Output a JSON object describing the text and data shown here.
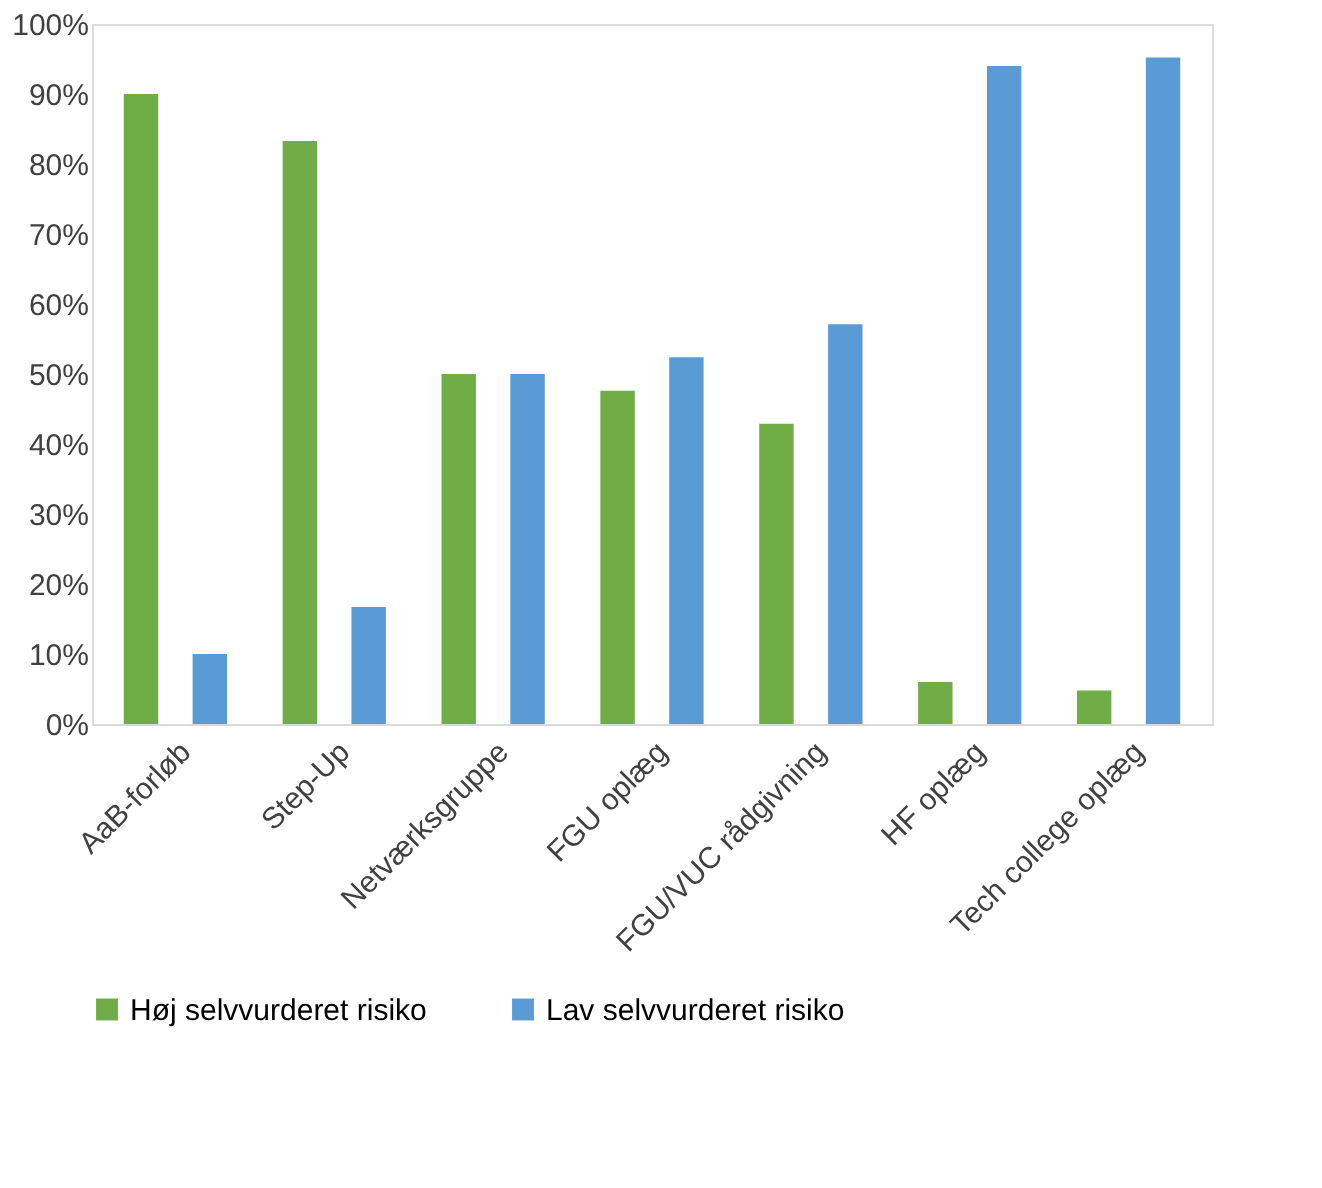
{
  "chart_data": {
    "type": "bar",
    "categories": [
      "AaB-forløb",
      "Step-Up",
      "Netværksgruppe",
      "FGU oplæg",
      "FGU/VUC rådgivning",
      "HF oplæg",
      "Tech college oplæg"
    ],
    "series": [
      {
        "name": "Høj selvvurderet risiko",
        "color": "#70ad47",
        "values": [
          90,
          83.3,
          50,
          47.6,
          42.9,
          6,
          4.8
        ]
      },
      {
        "name": "Lav selvvurderet risiko",
        "color": "#5b9bd5",
        "values": [
          10,
          16.7,
          50,
          52.4,
          57.1,
          94,
          95.2
        ]
      }
    ],
    "ylim": [
      0,
      100
    ],
    "yticks": [
      {
        "value": 0,
        "label": "0%"
      },
      {
        "value": 10,
        "label": "10%"
      },
      {
        "value": 20,
        "label": "20%"
      },
      {
        "value": 30,
        "label": "30%"
      },
      {
        "value": 40,
        "label": "40%"
      },
      {
        "value": 50,
        "label": "50%"
      },
      {
        "value": 60,
        "label": "60%"
      },
      {
        "value": 70,
        "label": "70%"
      },
      {
        "value": 80,
        "label": "80%"
      },
      {
        "value": 90,
        "label": "90%"
      },
      {
        "value": 100,
        "label": "100%"
      }
    ],
    "grid": false,
    "legend": "bottom"
  }
}
